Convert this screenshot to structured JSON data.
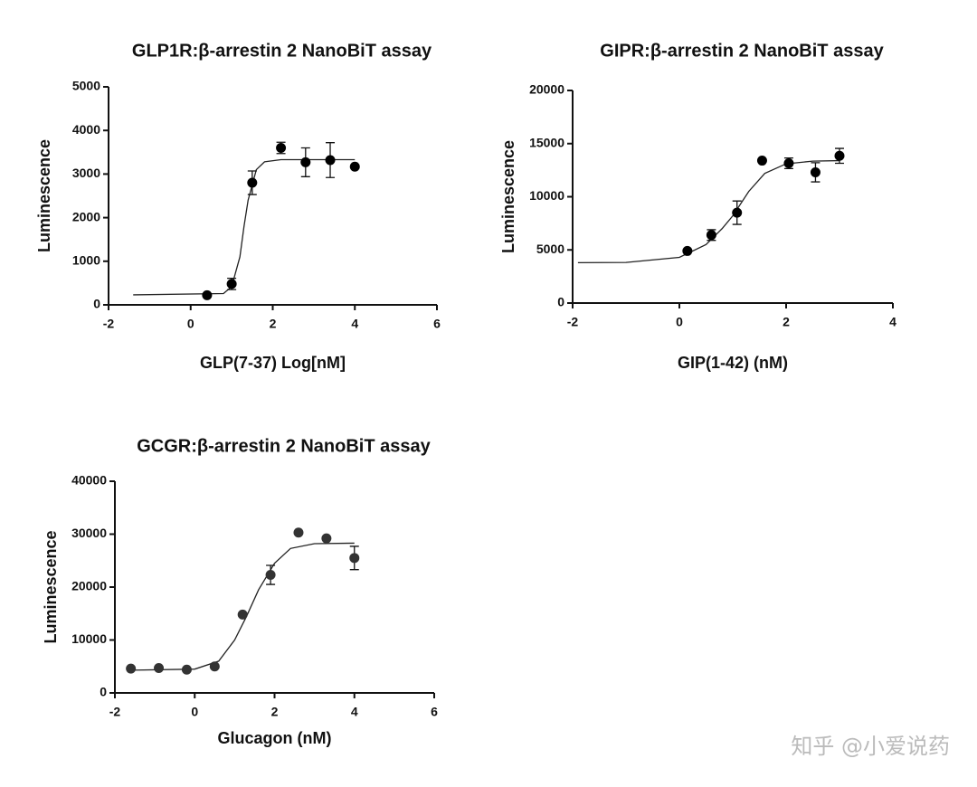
{
  "chart_data": [
    {
      "type": "scatter",
      "title": "GLP1R:β-arrestin 2 NanoBiT assay",
      "x_label": "GLP(7-37) Log[nM]",
      "y_label": "Luminescence",
      "xlim": [
        -2,
        6
      ],
      "xticks": [
        -2,
        0,
        2,
        4,
        6
      ],
      "ylim": [
        0,
        5000
      ],
      "yticks": [
        0,
        1000,
        2000,
        3000,
        4000,
        5000
      ],
      "color": "#000000",
      "x": [
        0.4,
        1.0,
        1.5,
        2.2,
        2.8,
        3.4,
        4.0
      ],
      "values": [
        220,
        480,
        2800,
        3600,
        3270,
        3320,
        3170
      ],
      "errors": [
        null,
        130,
        270,
        130,
        330,
        400,
        null
      ],
      "fit": {
        "x": [
          -1.4,
          0.8,
          1.0,
          1.2,
          1.3,
          1.4,
          1.6,
          1.8,
          2.2,
          4.0
        ],
        "values": [
          230,
          260,
          420,
          1100,
          1800,
          2400,
          3100,
          3280,
          3330,
          3330
        ]
      }
    },
    {
      "type": "scatter",
      "title": "GIPR:β-arrestin 2 NanoBiT assay",
      "x_label": "GIP(1-42) (nM)",
      "y_label": "Luminescence",
      "xlim": [
        -2,
        4
      ],
      "xticks": [
        -2,
        0,
        2,
        4
      ],
      "ylim": [
        0,
        20000
      ],
      "yticks": [
        0,
        5000,
        10000,
        15000,
        20000
      ],
      "color": "#000000",
      "x": [
        0.15,
        0.6,
        1.08,
        1.55,
        2.05,
        2.55,
        3.0
      ],
      "values": [
        4900,
        6400,
        8500,
        13400,
        13150,
        12300,
        13850
      ],
      "errors": [
        null,
        500,
        1100,
        null,
        500,
        900,
        700
      ],
      "fit": {
        "x": [
          -1.9,
          -1,
          0,
          0.5,
          0.8,
          1.0,
          1.3,
          1.6,
          2,
          2.5,
          3
        ],
        "values": [
          3800,
          3820,
          4300,
          5500,
          7000,
          8200,
          10500,
          12200,
          13100,
          13350,
          13400
        ]
      }
    },
    {
      "type": "scatter",
      "title": "GCGR:β-arrestin 2 NanoBiT assay",
      "x_label": "Glucagon (nM)",
      "y_label": "Luminescence",
      "xlim": [
        -2,
        6
      ],
      "xticks": [
        -2,
        0,
        2,
        4,
        6
      ],
      "ylim": [
        0,
        40000
      ],
      "yticks": [
        0,
        10000,
        20000,
        30000,
        40000
      ],
      "color": "#333333",
      "x": [
        -1.6,
        -0.9,
        -0.2,
        0.5,
        1.2,
        1.9,
        2.6,
        3.3,
        4.0
      ],
      "values": [
        4600,
        4700,
        4400,
        5000,
        14800,
        22300,
        30300,
        29200,
        25500
      ],
      "errors": [
        null,
        null,
        null,
        null,
        null,
        1800,
        null,
        null,
        2200
      ],
      "fit": {
        "x": [
          -1.6,
          0,
          0.6,
          1.0,
          1.3,
          1.6,
          2.0,
          2.4,
          3,
          4
        ],
        "values": [
          4300,
          4500,
          6000,
          10000,
          14500,
          19500,
          24500,
          27300,
          28200,
          28300
        ]
      }
    }
  ],
  "watermark": "知乎 @小爱说药"
}
